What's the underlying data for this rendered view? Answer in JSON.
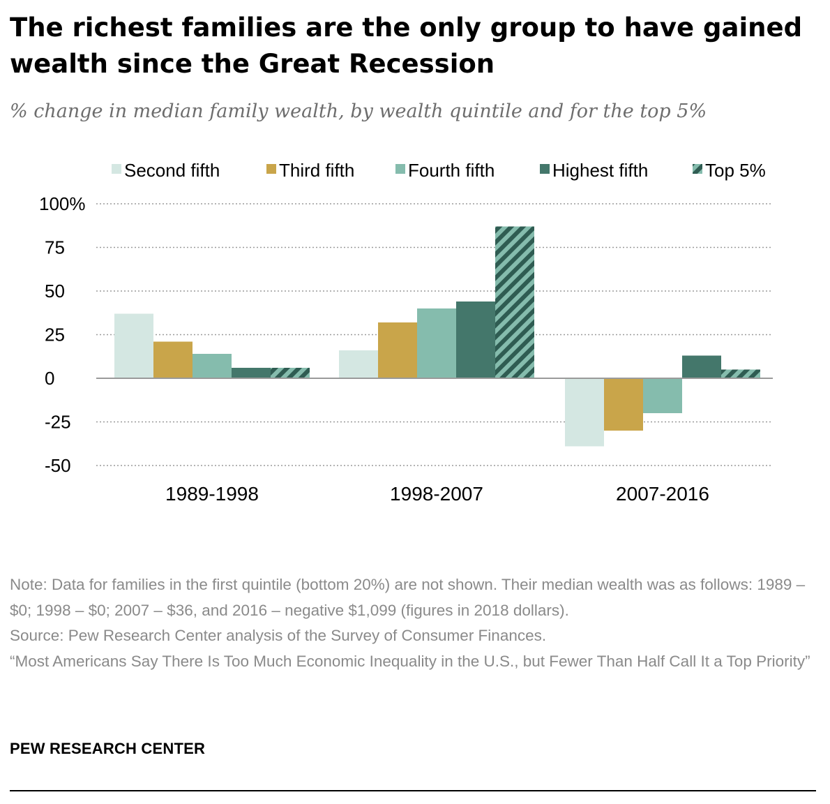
{
  "title": "The richest families are the only group to have gained wealth since the Great Recession",
  "subtitle": "% change in median family wealth, by wealth quintile and for the top 5%",
  "notes": {
    "note": "Note: Data for families in the first quintile (bottom 20%) are not shown. Their median wealth was as follows: 1989 – $0; 1998 – $0; 2007 – $36, and 2016 – negative $1,099 (figures in 2018 dollars).",
    "source": "Source: Pew Research Center analysis of the Survey of Consumer Finances.",
    "report": "“Most Americans Say There Is Too Much Economic Inequality in the U.S., but Fewer Than Half Call It a Top Priority”"
  },
  "brand": "PEW RESEARCH CENTER",
  "chart_data": {
    "type": "bar",
    "categories": [
      "1989-1998",
      "1998-2007",
      "2007-2016"
    ],
    "series": [
      {
        "name": "Second fifth",
        "color": "#d4e7e2",
        "pattern": "solid",
        "values": [
          37,
          16,
          -39
        ]
      },
      {
        "name": "Third fifth",
        "color": "#c9a54a",
        "pattern": "solid",
        "values": [
          21,
          32,
          -30
        ]
      },
      {
        "name": "Fourth fifth",
        "color": "#85bcad",
        "pattern": "solid",
        "values": [
          14,
          40,
          -20
        ]
      },
      {
        "name": "Highest fifth",
        "color": "#44776b",
        "pattern": "solid",
        "values": [
          6,
          44,
          13
        ]
      },
      {
        "name": "Top 5%",
        "color": "#85bcad",
        "stripe_color": "#2f5c52",
        "pattern": "diagonal-stripes",
        "values": [
          6,
          87,
          5
        ]
      }
    ],
    "yticks": [
      {
        "value": 100,
        "label": "100%"
      },
      {
        "value": 75,
        "label": "75"
      },
      {
        "value": 50,
        "label": "50"
      },
      {
        "value": 25,
        "label": "25"
      },
      {
        "value": 0,
        "label": "0"
      },
      {
        "value": -25,
        "label": "-25"
      },
      {
        "value": -50,
        "label": "-50"
      }
    ],
    "ylim": [
      -50,
      100
    ],
    "grid": "dotted horizontal",
    "legend_position": "top",
    "xlabel": "",
    "ylabel": ""
  }
}
